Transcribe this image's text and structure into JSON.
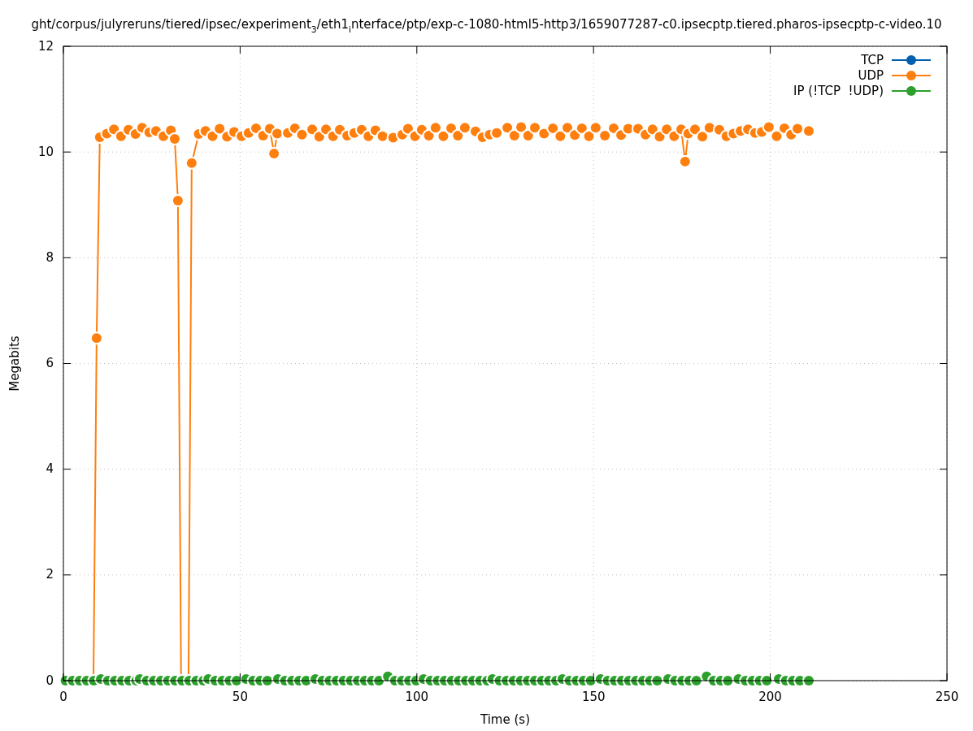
{
  "chart_data": {
    "type": "line",
    "title": "ght/corpus/julyreruns/tiered/ipsec/experiment$_{3}$/eth1$_{i}$nterface/ptp/exp-c-1080-html5-http3/1659077287-c0.ipsecptp.tiered.pharos-ipsecptp-c-video.10",
    "xlabel": "Time (s)",
    "ylabel": "Megabits",
    "xlim": [
      0,
      250
    ],
    "ylim": [
      0,
      12
    ],
    "xticks": [
      0,
      50,
      100,
      150,
      200,
      250
    ],
    "yticks": [
      0,
      2,
      4,
      6,
      8,
      10,
      12
    ],
    "grid": true,
    "legend": "top right",
    "marker": "circle",
    "line_style": "solid",
    "series": [
      {
        "name": "TCP",
        "color": "#0060ad"
      },
      {
        "name": "UDP",
        "color": "#ff7f0e",
        "x": [
          8.5,
          9.4,
          10.3,
          12.3,
          14.3,
          16.3,
          18.4,
          20.4,
          22.3,
          24.3,
          26.2,
          28.3,
          30.4,
          31.5,
          32.4,
          33.3,
          35.4,
          36.3,
          38.3,
          40.2,
          42.2,
          44.2,
          46.3,
          48.3,
          50.4,
          52.4,
          54.5,
          56.5,
          58.4,
          59.6,
          60.5,
          63.5,
          65.5,
          67.5,
          70.4,
          72.4,
          74.3,
          76.3,
          78.2,
          80.3,
          82.3,
          84.4,
          86.3,
          88.3,
          90.3,
          93.3,
          95.9,
          97.5,
          99.5,
          101.4,
          103.4,
          105.3,
          107.5,
          109.7,
          111.6,
          113.6,
          116.6,
          118.6,
          120.6,
          122.6,
          125.6,
          127.6,
          129.5,
          131.5,
          133.4,
          136,
          138.5,
          140.6,
          142.6,
          144.7,
          146.7,
          148.7,
          150.6,
          153.2,
          155.7,
          157.8,
          159.8,
          162.6,
          164.7,
          166.7,
          168.7,
          170.7,
          172.8,
          174.8,
          175.9,
          176.8,
          178.7,
          180.8,
          182.8,
          185.6,
          187.6,
          189.6,
          191.6,
          193.7,
          195.7,
          197.6,
          199.6,
          201.8,
          204,
          205.9,
          207.7,
          210.9
        ],
        "values": [
          0,
          6.48,
          10.28,
          10.35,
          10.43,
          10.3,
          10.42,
          10.34,
          10.46,
          10.37,
          10.4,
          10.3,
          10.41,
          10.25,
          9.08,
          0,
          0,
          9.79,
          10.34,
          10.4,
          10.3,
          10.44,
          10.29,
          10.38,
          10.3,
          10.36,
          10.45,
          10.31,
          10.44,
          9.97,
          10.35,
          10.36,
          10.45,
          10.33,
          10.43,
          10.29,
          10.43,
          10.3,
          10.42,
          10.31,
          10.36,
          10.42,
          10.3,
          10.41,
          10.3,
          10.27,
          10.33,
          10.44,
          10.3,
          10.42,
          10.31,
          10.46,
          10.3,
          10.45,
          10.31,
          10.46,
          10.39,
          10.28,
          10.33,
          10.36,
          10.46,
          10.31,
          10.47,
          10.31,
          10.46,
          10.35,
          10.45,
          10.3,
          10.46,
          10.32,
          10.45,
          10.3,
          10.46,
          10.31,
          10.45,
          10.32,
          10.44,
          10.44,
          10.33,
          10.43,
          10.29,
          10.43,
          10.3,
          10.43,
          9.82,
          10.35,
          10.43,
          10.29,
          10.46,
          10.42,
          10.3,
          10.35,
          10.4,
          10.43,
          10.36,
          10.38,
          10.47,
          10.3,
          10.45,
          10.33,
          10.44,
          10.4
        ]
      },
      {
        "name": "IP (!TCP  !UDP)",
        "color": "#2ca02c",
        "type": "scatter",
        "x": [
          0.6,
          2.6,
          4.6,
          6.6,
          8.6,
          10.6,
          12.6,
          14.6,
          16.6,
          18.6,
          20.6,
          21.6,
          23.6,
          25.6,
          27.6,
          29.6,
          31.6,
          33.6,
          35.6,
          37.6,
          39.6,
          41,
          43,
          45,
          47,
          49,
          51.7,
          53.7,
          55.7,
          57.7,
          60.7,
          62.7,
          64.7,
          66.7,
          68.7,
          71.3,
          73.3,
          75.3,
          77.3,
          79.3,
          81.3,
          83.3,
          85.3,
          87.3,
          89.3,
          91.8,
          93.8,
          95.8,
          97.8,
          99.8,
          101.9,
          103.9,
          105.9,
          107.9,
          109.9,
          111.9,
          113.9,
          115.9,
          117.9,
          119.9,
          121.4,
          123.4,
          125.4,
          127.4,
          129.4,
          131.4,
          133.4,
          135.4,
          137.4,
          139.4,
          141.2,
          143.2,
          145.2,
          147.2,
          149.2,
          152,
          154,
          156,
          158,
          160,
          162,
          164,
          166,
          168,
          171.1,
          173.1,
          175.1,
          177.1,
          179.1,
          182,
          184,
          186,
          188,
          191,
          193,
          195,
          197,
          199,
          202.4,
          204.4,
          206.4,
          208.4,
          210.9
        ],
        "values": [
          0,
          0,
          0,
          0,
          0,
          0.03,
          0,
          0,
          0,
          0,
          0,
          0.03,
          0,
          0,
          0,
          0,
          0,
          0,
          0,
          0,
          0,
          0.03,
          0,
          0,
          0,
          0,
          0.03,
          0,
          0,
          0,
          0.03,
          0,
          0,
          0,
          0,
          0.03,
          0,
          0,
          0,
          0,
          0,
          0,
          0,
          0,
          0,
          0.08,
          0,
          0,
          0,
          0,
          0.03,
          0,
          0,
          0,
          0,
          0,
          0,
          0,
          0,
          0,
          0.03,
          0,
          0,
          0,
          0,
          0,
          0,
          0,
          0,
          0,
          0.03,
          0,
          0,
          0,
          0,
          0.03,
          0,
          0,
          0,
          0,
          0,
          0,
          0,
          0,
          0.03,
          0,
          0,
          0,
          0,
          0.08,
          0,
          0,
          0,
          0.03,
          0,
          0,
          0,
          0,
          0.03,
          0,
          0,
          0,
          0
        ]
      }
    ]
  }
}
